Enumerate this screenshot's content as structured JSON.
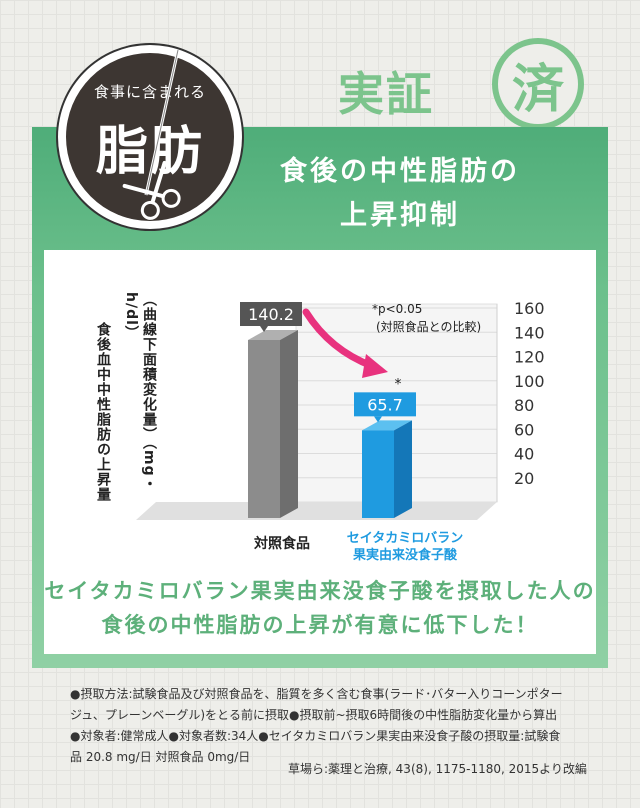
{
  "stamp": {
    "text": "実証",
    "circle_char": "済",
    "color": "#7cc48c"
  },
  "badge": {
    "small_text": "食事に含まれる",
    "big_text": "脂肪"
  },
  "headline": {
    "line1": "食後の中性脂肪の",
    "line2": "上昇抑制"
  },
  "chart_data": {
    "type": "bar",
    "categories": [
      "対照食品",
      "セイタカミロバラン果実由来没食子酸"
    ],
    "category_label_lines": [
      [
        "対照食品"
      ],
      [
        "セイタカミロバラン",
        "果実由来没食子酸"
      ]
    ],
    "values": [
      140.2,
      65.7
    ],
    "value_labels": [
      "140.2",
      "65.7"
    ],
    "bar_colors": [
      "#8c8c8c",
      "#1f9be0"
    ],
    "label_colors": [
      "#555555",
      "#1f9be0"
    ],
    "ylim": [
      0,
      160
    ],
    "yticks": [
      20,
      40,
      60,
      80,
      100,
      120,
      140,
      160
    ],
    "ytick_labels": [
      "20",
      "40",
      "60",
      "80",
      "100",
      "120",
      "140",
      "160"
    ],
    "ylabel_lines": [
      "食後血中中性脂肪の上昇量",
      "（曲線下面積変化量）（mg・h/dl）"
    ],
    "note_lines": [
      "*p<0.05",
      "(対照食品との比較)"
    ],
    "significance_marker": "*",
    "grid": true
  },
  "conclusion": {
    "line1": "セイタカミロバラン果実由来没食子酸を摂取した人の",
    "line2": "食後の中性脂肪の上昇が有意に低下した！"
  },
  "footnote": {
    "line1": "●摂取方法:試験食品及び対照食品を、脂質を多く含む食事(ラード･バター入りコーンポター",
    "line2": "ジュ、プレーンベーグル)をとる前に摂取●摂取前~摂取6時間後の中性脂肪変化量から算出",
    "line3": "●対象者:健常成人●対象者数:34人●セイタカミロバラン果実由来没食子酸の摂取量:試験食",
    "line4": "品 20.8 mg/日 対照食品 0mg/日"
  },
  "source": "草場ら:薬理と治療, 43(8), 1175-1180, 2015より改編"
}
